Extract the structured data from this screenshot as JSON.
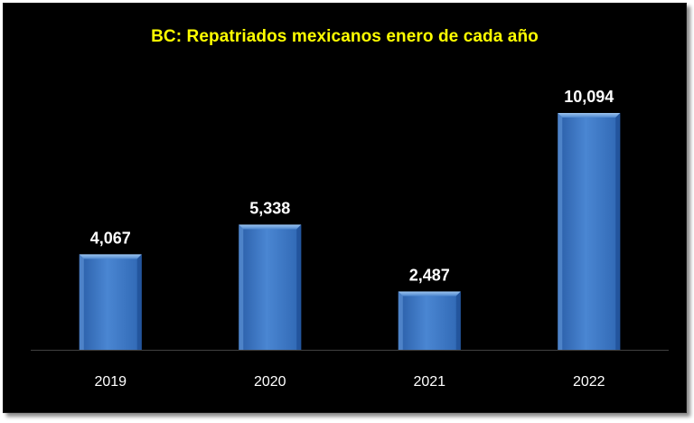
{
  "chart_data": {
    "type": "bar",
    "title": "BC: Repatriados  mexicanos enero de cada año",
    "categories": [
      "2019",
      "2020",
      "2021",
      "2022"
    ],
    "values": [
      4067,
      5338,
      2487,
      10094
    ],
    "value_labels": [
      "4,067",
      "5,338",
      "2,487",
      "10,094"
    ],
    "xlabel": "",
    "ylabel": "",
    "ylim": [
      0,
      10094
    ],
    "grid": false,
    "legend": "none",
    "colors": {
      "background": "#000000",
      "title": "#ffff00",
      "bar": "#4a86d2",
      "bar_dark": "#1f4f95",
      "bar_light": "#7aaee8",
      "text": "#ffffff",
      "axis": "#404040"
    }
  }
}
